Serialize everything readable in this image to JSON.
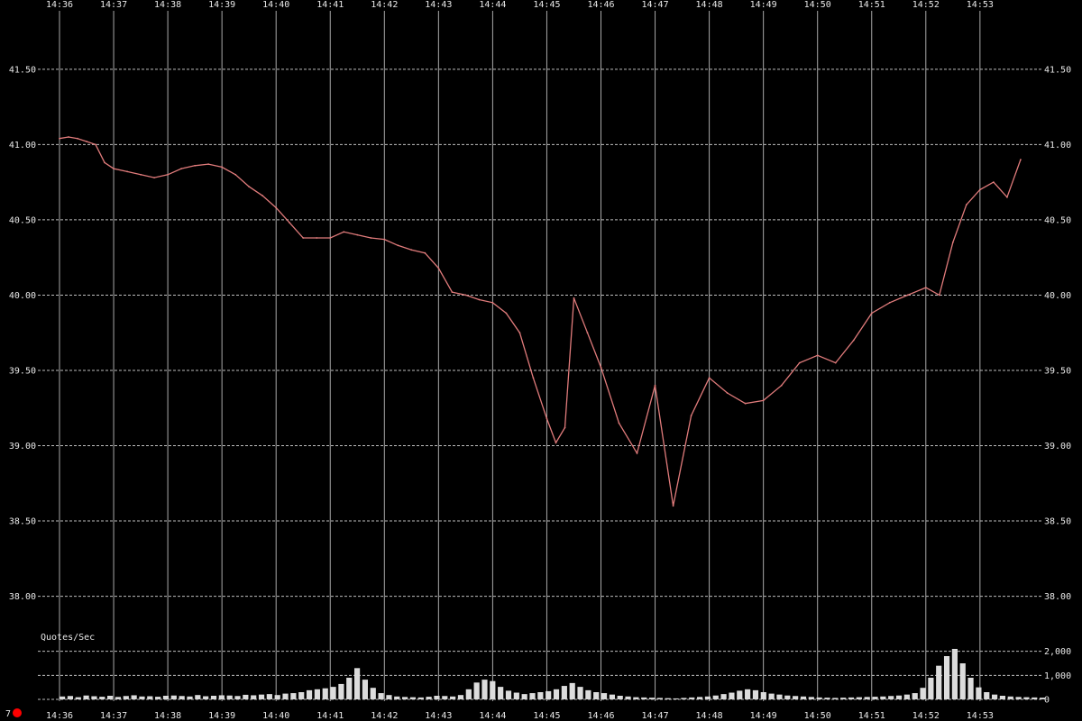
{
  "chart_data": {
    "type": "line",
    "time_ticks": [
      "14:36",
      "14:37",
      "14:38",
      "14:39",
      "14:40",
      "14:41",
      "14:42",
      "14:43",
      "14:44",
      "14:45",
      "14:46",
      "14:47",
      "14:48",
      "14:49",
      "14:50",
      "14:51",
      "14:52",
      "14:53"
    ],
    "price_axis": {
      "ticks": [
        38.0,
        38.5,
        39.0,
        39.5,
        40.0,
        40.5,
        41.0,
        41.5
      ],
      "tick_labels": [
        "38.00",
        "38.50",
        "39.00",
        "39.50",
        "40.00",
        "40.50",
        "41.00",
        "41.50"
      ],
      "range": [
        37.8,
        41.9
      ],
      "grid": true
    },
    "price_series": {
      "color": "#e07b7b",
      "points": [
        [
          "14:36:00",
          41.04
        ],
        [
          "14:36:10",
          41.05
        ],
        [
          "14:36:20",
          41.04
        ],
        [
          "14:36:30",
          41.02
        ],
        [
          "14:36:40",
          41.0
        ],
        [
          "14:36:50",
          40.88
        ],
        [
          "14:37:00",
          40.84
        ],
        [
          "14:37:15",
          40.82
        ],
        [
          "14:37:30",
          40.8
        ],
        [
          "14:37:45",
          40.78
        ],
        [
          "14:38:00",
          40.8
        ],
        [
          "14:38:15",
          40.84
        ],
        [
          "14:38:30",
          40.86
        ],
        [
          "14:38:45",
          40.87
        ],
        [
          "14:39:00",
          40.85
        ],
        [
          "14:39:15",
          40.8
        ],
        [
          "14:39:30",
          40.72
        ],
        [
          "14:39:45",
          40.66
        ],
        [
          "14:40:00",
          40.58
        ],
        [
          "14:40:15",
          40.48
        ],
        [
          "14:40:30",
          40.38
        ],
        [
          "14:40:45",
          40.38
        ],
        [
          "14:41:00",
          40.38
        ],
        [
          "14:41:15",
          40.42
        ],
        [
          "14:41:30",
          40.4
        ],
        [
          "14:41:45",
          40.38
        ],
        [
          "14:42:00",
          40.37
        ],
        [
          "14:42:15",
          40.33
        ],
        [
          "14:42:30",
          40.3
        ],
        [
          "14:42:45",
          40.28
        ],
        [
          "14:43:00",
          40.18
        ],
        [
          "14:43:15",
          40.02
        ],
        [
          "14:43:30",
          40.0
        ],
        [
          "14:43:45",
          39.97
        ],
        [
          "14:44:00",
          39.95
        ],
        [
          "14:44:15",
          39.88
        ],
        [
          "14:44:30",
          39.75
        ],
        [
          "14:44:45",
          39.45
        ],
        [
          "14:45:00",
          39.18
        ],
        [
          "14:45:10",
          39.02
        ],
        [
          "14:45:20",
          39.12
        ],
        [
          "14:45:30",
          39.98
        ],
        [
          "14:45:45",
          39.75
        ],
        [
          "14:46:00",
          39.52
        ],
        [
          "14:46:20",
          39.15
        ],
        [
          "14:46:40",
          38.95
        ],
        [
          "14:47:00",
          39.4
        ],
        [
          "14:47:20",
          38.6
        ],
        [
          "14:47:40",
          39.2
        ],
        [
          "14:48:00",
          39.45
        ],
        [
          "14:48:20",
          39.35
        ],
        [
          "14:48:40",
          39.28
        ],
        [
          "14:49:00",
          39.3
        ],
        [
          "14:49:20",
          39.4
        ],
        [
          "14:49:40",
          39.55
        ],
        [
          "14:50:00",
          39.6
        ],
        [
          "14:50:20",
          39.55
        ],
        [
          "14:50:40",
          39.7
        ],
        [
          "14:51:00",
          39.88
        ],
        [
          "14:51:20",
          39.95
        ],
        [
          "14:51:40",
          40.0
        ],
        [
          "14:52:00",
          40.05
        ],
        [
          "14:52:15",
          40.0
        ],
        [
          "14:52:30",
          40.35
        ],
        [
          "14:52:45",
          40.6
        ],
        [
          "14:53:00",
          40.7
        ],
        [
          "14:53:15",
          40.75
        ],
        [
          "14:53:30",
          40.65
        ],
        [
          "14:53:45",
          40.9
        ]
      ]
    },
    "quotes_axis": {
      "label": "Quotes/Sec",
      "ticks": [
        0,
        1000,
        2000
      ],
      "tick_labels": [
        "0",
        "1,000",
        "2,000"
      ],
      "range": [
        0,
        2400
      ]
    },
    "quotes_series": {
      "color": "#dcdcdc",
      "values": [
        120,
        140,
        90,
        160,
        130,
        110,
        150,
        100,
        140,
        170,
        120,
        130,
        110,
        150,
        160,
        140,
        120,
        180,
        130,
        150,
        170,
        160,
        140,
        190,
        170,
        200,
        220,
        180,
        240,
        260,
        300,
        380,
        420,
        460,
        520,
        640,
        900,
        1300,
        820,
        480,
        260,
        180,
        120,
        100,
        90,
        80,
        110,
        150,
        140,
        120,
        180,
        420,
        700,
        820,
        760,
        520,
        360,
        280,
        220,
        260,
        300,
        340,
        420,
        560,
        680,
        520,
        380,
        300,
        260,
        200,
        150,
        120,
        90,
        80,
        70,
        60,
        50,
        40,
        60,
        80,
        100,
        120,
        160,
        220,
        280,
        360,
        420,
        380,
        300,
        240,
        200,
        160,
        140,
        120,
        100,
        80,
        70,
        60,
        70,
        80,
        90,
        100,
        110,
        120,
        140,
        160,
        200,
        260,
        480,
        900,
        1400,
        1800,
        2100,
        1500,
        900,
        500,
        300,
        200,
        150,
        120,
        100,
        90,
        80,
        70
      ]
    }
  },
  "indicator": {
    "label": "7",
    "color": "#ff0000"
  }
}
